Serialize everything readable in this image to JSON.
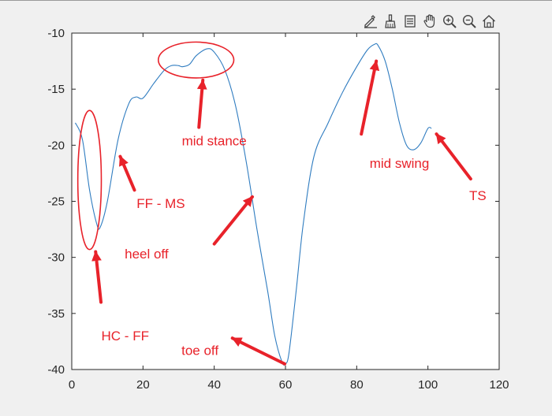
{
  "toolbar": {
    "icons": [
      "edit-plot-icon",
      "brush-icon",
      "data-tips-icon",
      "pan-hand-icon",
      "zoom-in-icon",
      "zoom-out-icon",
      "home-icon"
    ]
  },
  "colors": {
    "line": "#2f7cc0",
    "annotation": "#e8222a",
    "axes": "#262626",
    "axes_bg": "#ffffff",
    "figure_bg": "#f0f0f0"
  },
  "chart_data": {
    "type": "line",
    "title": "",
    "xlabel": "",
    "ylabel": "",
    "xlim": [
      0,
      120
    ],
    "ylim": [
      -40,
      -10
    ],
    "xticks": [
      0,
      20,
      40,
      60,
      80,
      100,
      120
    ],
    "yticks": [
      -10,
      -15,
      -20,
      -25,
      -30,
      -35,
      -40
    ],
    "grid": false,
    "series": [
      {
        "x": [
          1,
          3,
          5,
          7,
          8,
          10,
          13,
          16,
          18,
          20,
          23,
          26,
          28,
          30,
          31,
          33,
          35,
          38,
          40,
          43,
          46,
          49,
          52,
          55,
          57,
          59,
          60,
          61,
          63,
          65,
          68,
          72,
          76,
          80,
          83,
          85,
          86,
          88,
          90,
          92,
          94,
          96,
          98,
          100,
          101
        ],
        "y": [
          -18.0,
          -19.5,
          -24.0,
          -27.0,
          -27.3,
          -25.0,
          -19.5,
          -16.3,
          -15.7,
          -15.8,
          -14.5,
          -13.3,
          -12.9,
          -12.9,
          -13.0,
          -12.8,
          -12.0,
          -11.4,
          -11.7,
          -13.3,
          -16.5,
          -21.5,
          -27.5,
          -33.0,
          -37.0,
          -39.3,
          -39.5,
          -38.5,
          -33.0,
          -27.0,
          -21.0,
          -18.0,
          -15.3,
          -13.0,
          -11.5,
          -11.0,
          -11.1,
          -12.5,
          -15.0,
          -18.0,
          -20.0,
          -20.4,
          -19.8,
          -18.5,
          -18.5
        ]
      }
    ],
    "annotations": [
      {
        "text": "mid stance",
        "x": 40,
        "y": -20.0
      },
      {
        "text": "mid swing",
        "x": 92,
        "y": -22.0
      },
      {
        "text": "TS",
        "x": 114,
        "y": -24.9
      },
      {
        "text": "FF - MS",
        "x": 25,
        "y": -25.6
      },
      {
        "text": "heel off",
        "x": 21,
        "y": -30.1
      },
      {
        "text": "HC - FF",
        "x": 15,
        "y": -37.4
      },
      {
        "text": "toe off",
        "x": 36,
        "y": -38.7
      }
    ],
    "arrows": [
      {
        "from": [
          35.7,
          -18.4
        ],
        "to": [
          36.8,
          -14.2
        ]
      },
      {
        "from": [
          81.3,
          -19.0
        ],
        "to": [
          85.5,
          -12.5
        ]
      },
      {
        "from": [
          112.0,
          -23.0
        ],
        "to": [
          102.4,
          -19.0
        ]
      },
      {
        "from": [
          17.6,
          -24.0
        ],
        "to": [
          13.6,
          -21.0
        ]
      },
      {
        "from": [
          40.0,
          -28.8
        ],
        "to": [
          50.7,
          -24.6
        ]
      },
      {
        "from": [
          8.2,
          -34.0
        ],
        "to": [
          6.7,
          -29.5
        ]
      },
      {
        "from": [
          59.8,
          -39.5
        ],
        "to": [
          45.1,
          -37.2
        ]
      }
    ],
    "ellipses": [
      {
        "cx": 5.0,
        "cy": -23.1,
        "rx": 3.3,
        "ry": 6.2
      },
      {
        "cx": 34.9,
        "cy": -12.4,
        "rx": 10.6,
        "ry": 1.6
      }
    ]
  }
}
